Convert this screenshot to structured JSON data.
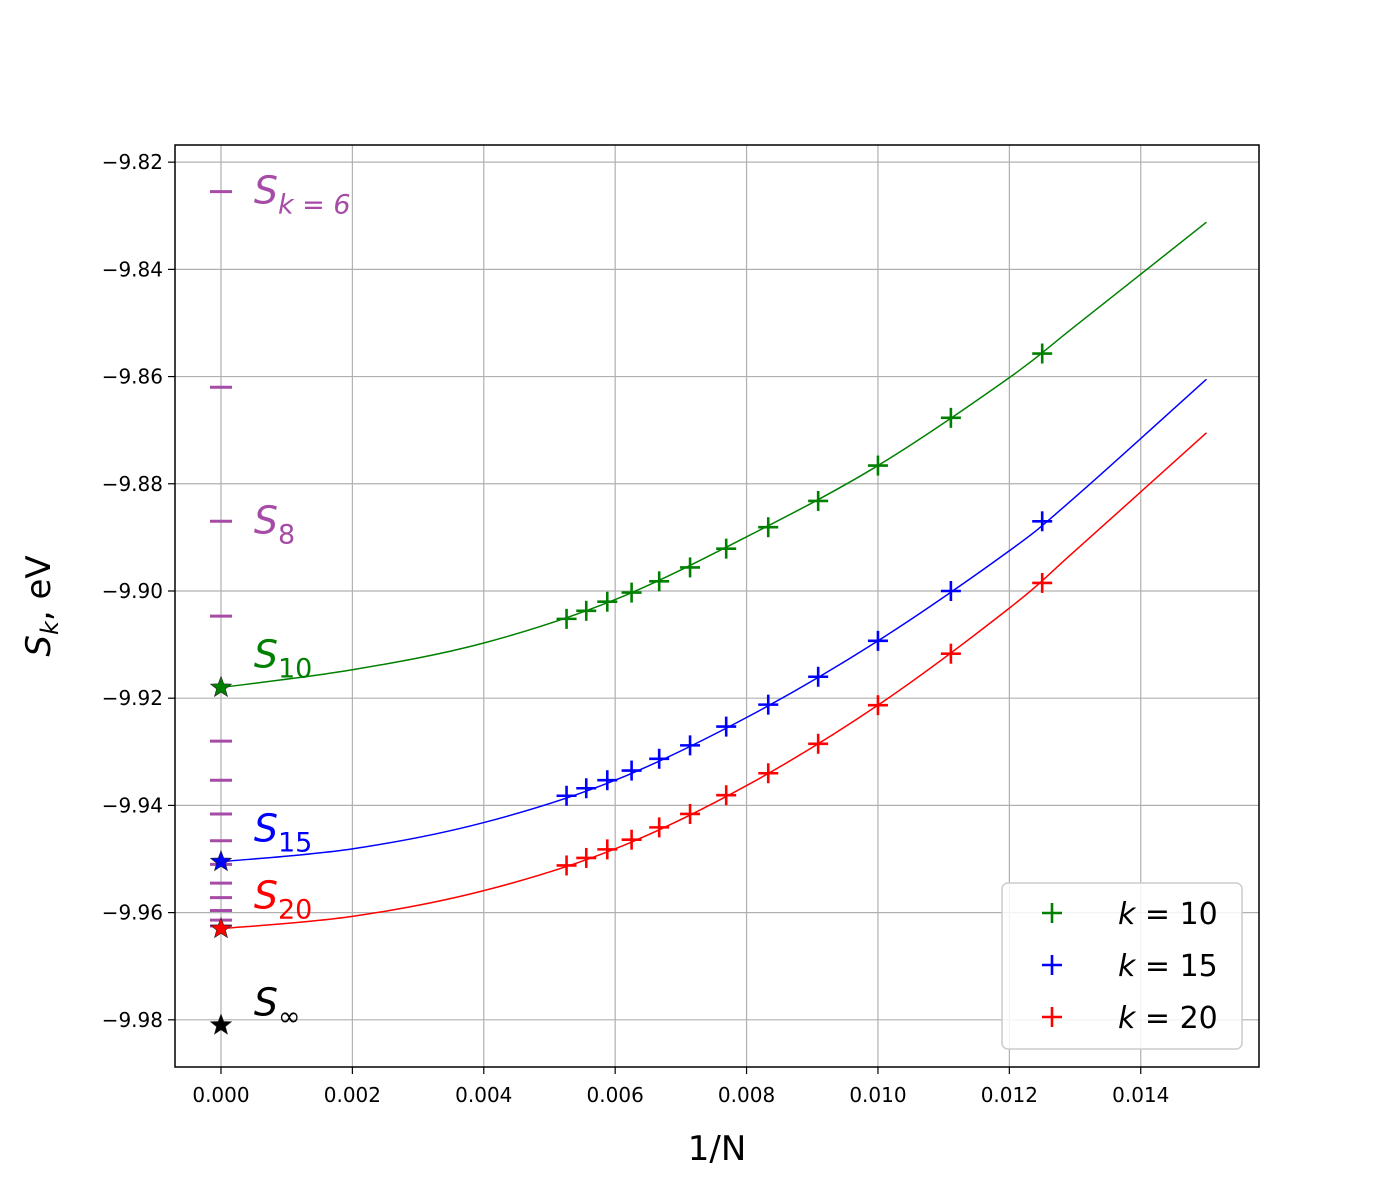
{
  "chart_data": {
    "type": "scatter",
    "title": "",
    "xlabel": "1/N",
    "ylabel": "S_k, eV",
    "xlim": [
      -0.0007,
      0.0158
    ],
    "ylim": [
      -9.9888,
      -9.8168
    ],
    "grid": true,
    "legend_position": "bottom-right",
    "x_ticks": [
      0.0,
      0.002,
      0.004,
      0.006,
      0.008,
      0.01,
      0.012,
      0.014
    ],
    "x_tick_labels": [
      "0.000",
      "0.002",
      "0.004",
      "0.006",
      "0.008",
      "0.010",
      "0.012",
      "0.014"
    ],
    "y_ticks": [
      -9.82,
      -9.84,
      -9.86,
      -9.88,
      -9.9,
      -9.92,
      -9.94,
      -9.96,
      -9.98
    ],
    "y_tick_labels": [
      "−9.82",
      "−9.84",
      "−9.86",
      "−9.88",
      "−9.90",
      "−9.92",
      "−9.94",
      "−9.96",
      "−9.98"
    ],
    "x_points": [
      0.00526,
      0.00556,
      0.00588,
      0.00625,
      0.00667,
      0.00714,
      0.00769,
      0.00833,
      0.00909,
      0.01,
      0.01111,
      0.0125
    ],
    "series": [
      {
        "label_k": "k",
        "label_eq": " = ",
        "label_val": "10",
        "color": "#008000",
        "y_values": [
          -9.9052,
          -9.9037,
          -9.902,
          -9.9003,
          -9.8982,
          -9.8956,
          -9.8921,
          -9.8881,
          -9.8832,
          -9.8766,
          -9.8677,
          -9.8557
        ],
        "fit_y0": -9.918,
        "fit_curve": [
          [
            0.0,
            -9.918
          ],
          [
            0.002,
            -9.9147
          ],
          [
            0.004,
            -9.9097
          ],
          [
            0.006,
            -9.9016
          ],
          [
            0.008,
            -9.8899
          ],
          [
            0.01,
            -9.8766
          ],
          [
            0.012,
            -9.8602
          ],
          [
            0.013,
            -9.8506
          ],
          [
            0.015,
            -9.8312
          ]
        ],
        "limit_value": -9.918
      },
      {
        "label_k": "k",
        "label_eq": " = ",
        "label_val": "15",
        "color": "#0000ff",
        "y_values": [
          -9.9382,
          -9.9368,
          -9.9353,
          -9.9335,
          -9.9313,
          -9.9288,
          -9.9253,
          -9.9212,
          -9.916,
          -9.9093,
          -9.9,
          -9.887
        ],
        "fit_y0": -9.9505,
        "fit_curve": [
          [
            0.0,
            -9.9505
          ],
          [
            0.002,
            -9.9481
          ],
          [
            0.004,
            -9.9432
          ],
          [
            0.006,
            -9.9353
          ],
          [
            0.008,
            -9.9236
          ],
          [
            0.01,
            -9.9093
          ],
          [
            0.012,
            -9.8925
          ],
          [
            0.013,
            -9.8825
          ],
          [
            0.015,
            -9.8605
          ]
        ],
        "limit_value": -9.9505
      },
      {
        "label_k": "k",
        "label_eq": " = ",
        "label_val": "20",
        "color": "#ff0000",
        "y_values": [
          -9.9512,
          -9.9498,
          -9.9482,
          -9.9464,
          -9.9441,
          -9.9416,
          -9.9381,
          -9.934,
          -9.9285,
          -9.9213,
          -9.9117,
          -9.8985
        ],
        "fit_y0": -9.963,
        "fit_curve": [
          [
            0.0,
            -9.963
          ],
          [
            0.002,
            -9.9607
          ],
          [
            0.004,
            -9.9559
          ],
          [
            0.006,
            -9.9481
          ],
          [
            0.008,
            -9.9363
          ],
          [
            0.01,
            -9.9213
          ],
          [
            0.012,
            -9.9032
          ],
          [
            0.013,
            -9.8925
          ],
          [
            0.015,
            -9.8705
          ]
        ],
        "limit_value": -9.963
      }
    ],
    "dash_markers": {
      "color": "#a64ca6",
      "x": 0.0,
      "y_values": [
        -9.8255,
        -9.862,
        -9.887,
        -9.9047,
        -9.928,
        -9.9353,
        -9.9416,
        -9.9466,
        -9.951,
        -9.9545,
        -9.9572,
        -9.9596,
        -9.9614,
        -9.9625
      ]
    },
    "extrapolated_limit": {
      "x": 0.0,
      "y": -9.981,
      "color": "#000000"
    },
    "annotations": [
      {
        "main": "S",
        "sub": "k = 6",
        "color": "#a64ca6",
        "x": 0.0005,
        "y": -9.8255
      },
      {
        "main": "S",
        "sub": "8",
        "color": "#a64ca6",
        "x": 0.0005,
        "y": -9.887
      },
      {
        "main": "S",
        "sub": "10",
        "color": "#008000",
        "x": 0.0005,
        "y": -9.912
      },
      {
        "main": "S",
        "sub": "15",
        "color": "#0000ff",
        "x": 0.0005,
        "y": -9.9445
      },
      {
        "main": "S",
        "sub": "20",
        "color": "#ff0000",
        "x": 0.0005,
        "y": -9.957
      },
      {
        "main": "S",
        "sub": "∞",
        "color": "#000000",
        "x": 0.0005,
        "y": -9.977
      }
    ]
  }
}
